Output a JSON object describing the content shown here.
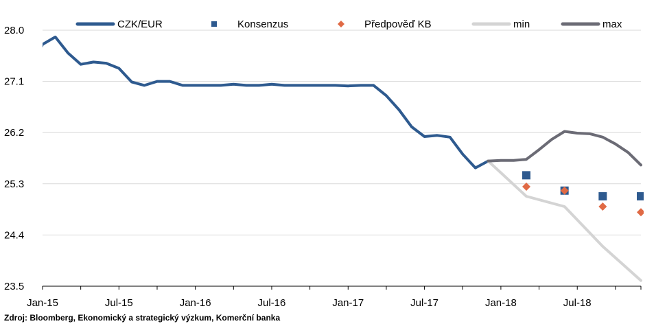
{
  "chart_data": {
    "type": "line",
    "title": "",
    "xlabel": "",
    "ylabel": "",
    "x_tick_labels": [
      "Jan-15",
      "Jul-15",
      "Jan-16",
      "Jul-16",
      "Jan-17",
      "Jul-17",
      "Jan-18",
      "Jul-18"
    ],
    "y_tick_labels": [
      "28.0",
      "27.1",
      "26.2",
      "25.3",
      "24.4",
      "23.5"
    ],
    "ylim": [
      23.5,
      28.0
    ],
    "xlim": [
      "2015-01",
      "2018-12"
    ],
    "grid": "horizontal",
    "legend_position": "top",
    "series": [
      {
        "name": "CZK/EUR",
        "kind": "line",
        "color": "#2e5a8f",
        "points": [
          {
            "x": "2015-01",
            "y": 27.75
          },
          {
            "x": "2015-02",
            "y": 27.88
          },
          {
            "x": "2015-03",
            "y": 27.6
          },
          {
            "x": "2015-04",
            "y": 27.4
          },
          {
            "x": "2015-05",
            "y": 27.44
          },
          {
            "x": "2015-06",
            "y": 27.42
          },
          {
            "x": "2015-07",
            "y": 27.33
          },
          {
            "x": "2015-08",
            "y": 27.09
          },
          {
            "x": "2015-09",
            "y": 27.03
          },
          {
            "x": "2015-10",
            "y": 27.1
          },
          {
            "x": "2015-11",
            "y": 27.1
          },
          {
            "x": "2015-12",
            "y": 27.03
          },
          {
            "x": "2016-01",
            "y": 27.03
          },
          {
            "x": "2016-02",
            "y": 27.03
          },
          {
            "x": "2016-03",
            "y": 27.03
          },
          {
            "x": "2016-04",
            "y": 27.05
          },
          {
            "x": "2016-05",
            "y": 27.03
          },
          {
            "x": "2016-06",
            "y": 27.03
          },
          {
            "x": "2016-07",
            "y": 27.05
          },
          {
            "x": "2016-08",
            "y": 27.03
          },
          {
            "x": "2016-09",
            "y": 27.03
          },
          {
            "x": "2016-10",
            "y": 27.03
          },
          {
            "x": "2016-11",
            "y": 27.03
          },
          {
            "x": "2016-12",
            "y": 27.03
          },
          {
            "x": "2017-01",
            "y": 27.02
          },
          {
            "x": "2017-02",
            "y": 27.03
          },
          {
            "x": "2017-03",
            "y": 27.03
          },
          {
            "x": "2017-04",
            "y": 26.85
          },
          {
            "x": "2017-05",
            "y": 26.6
          },
          {
            "x": "2017-06",
            "y": 26.3
          },
          {
            "x": "2017-07",
            "y": 26.13
          },
          {
            "x": "2017-08",
            "y": 26.15
          },
          {
            "x": "2017-09",
            "y": 26.12
          },
          {
            "x": "2017-10",
            "y": 25.82
          },
          {
            "x": "2017-11",
            "y": 25.58
          },
          {
            "x": "2017-12",
            "y": 25.7
          }
        ]
      },
      {
        "name": "Konsenzus",
        "kind": "marker-square",
        "color": "#2e5a8f",
        "points": [
          {
            "x": "2018-03",
            "y": 25.45
          },
          {
            "x": "2018-06",
            "y": 25.18
          },
          {
            "x": "2018-09",
            "y": 25.08
          },
          {
            "x": "2018-12",
            "y": 25.08
          }
        ]
      },
      {
        "name": "Předpověď KB",
        "kind": "marker-diamond",
        "color": "#e06a45",
        "points": [
          {
            "x": "2018-03",
            "y": 25.25
          },
          {
            "x": "2018-06",
            "y": 25.18
          },
          {
            "x": "2018-09",
            "y": 24.9
          },
          {
            "x": "2018-12",
            "y": 24.8
          }
        ]
      },
      {
        "name": "min",
        "kind": "line",
        "color": "#d4d4d4",
        "points": [
          {
            "x": "2017-12",
            "y": 25.7
          },
          {
            "x": "2018-03",
            "y": 25.08
          },
          {
            "x": "2018-06",
            "y": 24.9
          },
          {
            "x": "2018-09",
            "y": 24.2
          },
          {
            "x": "2018-12",
            "y": 23.6
          }
        ]
      },
      {
        "name": "max",
        "kind": "line",
        "color": "#6b6b75",
        "points": [
          {
            "x": "2017-12",
            "y": 25.7
          },
          {
            "x": "2018-01",
            "y": 25.71
          },
          {
            "x": "2018-02",
            "y": 25.71
          },
          {
            "x": "2018-03",
            "y": 25.73
          },
          {
            "x": "2018-04",
            "y": 25.9
          },
          {
            "x": "2018-05",
            "y": 26.08
          },
          {
            "x": "2018-06",
            "y": 26.22
          },
          {
            "x": "2018-07",
            "y": 26.19
          },
          {
            "x": "2018-08",
            "y": 26.18
          },
          {
            "x": "2018-09",
            "y": 26.12
          },
          {
            "x": "2018-10",
            "y": 26.0
          },
          {
            "x": "2018-11",
            "y": 25.85
          },
          {
            "x": "2018-12",
            "y": 25.63
          }
        ]
      }
    ]
  },
  "footer": {
    "source": "Zdroj: Bloomberg, Ekonomický a strategický výzkum, Komerční banka"
  }
}
